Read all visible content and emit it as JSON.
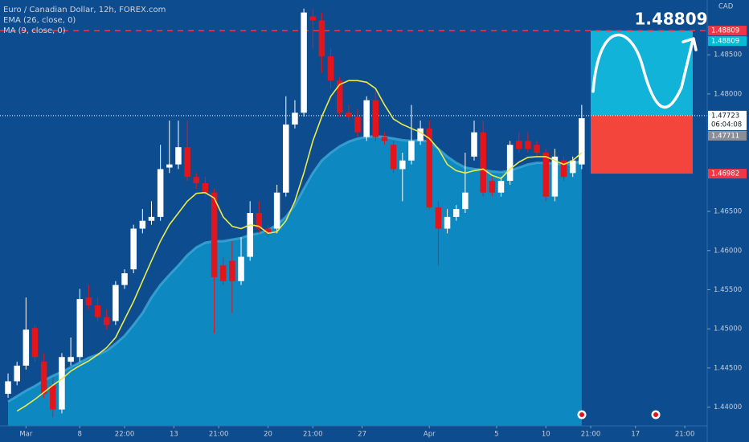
{
  "chart_data": {
    "type": "candlestick",
    "title": "Euro / Canadian Dollar, 12h, FOREX.com",
    "currency": "CAD",
    "up_color": "#ffffff",
    "down_color": "#e3151c",
    "open": [
      1.4417,
      1.4433,
      1.4453,
      1.4501,
      1.4458,
      1.4428,
      1.4397,
      1.4458,
      1.4464,
      1.454,
      1.453,
      1.4515,
      1.451,
      1.4556,
      1.4576,
      1.4628,
      1.4638,
      1.4643,
      1.4706,
      1.471,
      1.4732,
      1.4694,
      1.4686,
      1.4674,
      1.4581,
      1.4587,
      1.4561,
      1.4592,
      1.4648,
      1.4628,
      1.4628,
      1.4674,
      1.4761,
      1.4776,
      1.4899,
      1.4894,
      1.4848,
      1.4817,
      1.4776,
      1.4771,
      1.4745,
      1.4792,
      1.4745,
      1.4735,
      1.4704,
      1.4715,
      1.474,
      1.4756,
      1.4655,
      1.4628,
      1.4643,
      1.4653,
      1.472,
      1.4751,
      1.4689,
      1.4674,
      1.4689,
      1.474,
      1.474,
      1.4735,
      1.4725,
      1.4669,
      1.4715,
      1.4699,
      1.471
    ],
    "high": [
      1.4443,
      1.4458,
      1.454,
      1.4505,
      1.4469,
      1.4438,
      1.4469,
      1.4489,
      1.4551,
      1.4556,
      1.454,
      1.4525,
      1.4561,
      1.4576,
      1.4633,
      1.4653,
      1.4663,
      1.4735,
      1.4766,
      1.4766,
      1.4766,
      1.4699,
      1.4694,
      1.4679,
      1.4592,
      1.4612,
      1.4617,
      1.4663,
      1.4663,
      1.4633,
      1.4684,
      1.4797,
      1.4792,
      1.4909,
      1.4909,
      1.4904,
      1.4858,
      1.4822,
      1.4786,
      1.4781,
      1.4797,
      1.4807,
      1.4751,
      1.474,
      1.4725,
      1.4786,
      1.4766,
      1.4766,
      1.4663,
      1.4653,
      1.4658,
      1.4725,
      1.4766,
      1.4766,
      1.4694,
      1.4694,
      1.474,
      1.4751,
      1.4751,
      1.474,
      1.473,
      1.473,
      1.472,
      1.472,
      1.4786
    ],
    "low": [
      1.4412,
      1.4428,
      1.4448,
      1.4458,
      1.4412,
      1.4387,
      1.4392,
      1.4453,
      1.4458,
      1.4525,
      1.451,
      1.4499,
      1.4505,
      1.4551,
      1.4571,
      1.4622,
      1.4633,
      1.4638,
      1.4699,
      1.4704,
      1.4689,
      1.4679,
      1.4669,
      1.4494,
      1.4556,
      1.452,
      1.4556,
      1.4587,
      1.4622,
      1.4617,
      1.4622,
      1.4669,
      1.4756,
      1.4771,
      1.4858,
      1.4827,
      1.4807,
      1.4771,
      1.4766,
      1.4745,
      1.474,
      1.474,
      1.4735,
      1.4699,
      1.4663,
      1.471,
      1.4735,
      1.4653,
      1.4581,
      1.4622,
      1.4638,
      1.4648,
      1.4715,
      1.4669,
      1.4669,
      1.4669,
      1.4684,
      1.4725,
      1.4725,
      1.472,
      1.4663,
      1.4663,
      1.4689,
      1.4694,
      1.4704
    ],
    "close": [
      1.4433,
      1.4453,
      1.4499,
      1.4464,
      1.4417,
      1.4397,
      1.4464,
      1.4464,
      1.4538,
      1.453,
      1.4515,
      1.4505,
      1.4556,
      1.4571,
      1.4628,
      1.4638,
      1.4643,
      1.4704,
      1.471,
      1.4732,
      1.4694,
      1.4686,
      1.4674,
      1.4566,
      1.4561,
      1.4561,
      1.4592,
      1.4648,
      1.4628,
      1.4622,
      1.4674,
      1.4761,
      1.4776,
      1.4904,
      1.4894,
      1.4848,
      1.4817,
      1.4776,
      1.4771,
      1.4751,
      1.4792,
      1.4745,
      1.474,
      1.4704,
      1.4715,
      1.474,
      1.4756,
      1.4655,
      1.4628,
      1.4643,
      1.4653,
      1.4674,
      1.4751,
      1.4674,
      1.4674,
      1.4689,
      1.4735,
      1.473,
      1.473,
      1.4725,
      1.4669,
      1.472,
      1.4694,
      1.4715,
      1.4769
    ],
    "series": [
      {
        "name": "EMA (26, close, 0)",
        "color": "#0e88c0",
        "values": [
          1.4407,
          1.4414,
          1.4421,
          1.4427,
          1.4434,
          1.444,
          1.4445,
          1.4451,
          1.4457,
          1.4463,
          1.4467,
          1.4472,
          1.4481,
          1.4491,
          1.4505,
          1.452,
          1.454,
          1.4556,
          1.4569,
          1.4581,
          1.4594,
          1.4604,
          1.461,
          1.4612,
          1.4612,
          1.4614,
          1.4616,
          1.462,
          1.4622,
          1.4626,
          1.4633,
          1.4643,
          1.4658,
          1.4679,
          1.4699,
          1.4715,
          1.4725,
          1.4733,
          1.4739,
          1.4743,
          1.4745,
          1.4746,
          1.4745,
          1.4743,
          1.4741,
          1.474,
          1.4741,
          1.4739,
          1.473,
          1.472,
          1.4712,
          1.4706,
          1.4704,
          1.4703,
          1.4701,
          1.47,
          1.4702,
          1.4706,
          1.471,
          1.4712,
          1.4712,
          1.4711,
          1.471,
          1.4711,
          1.4715
        ]
      },
      {
        "name": "MA (9, close, 0)",
        "color": "#ecea4a",
        "values": [
          null,
          1.4395,
          1.4402,
          1.441,
          1.4419,
          1.4428,
          1.4436,
          1.4446,
          1.4453,
          1.4459,
          1.4467,
          1.4476,
          1.4489,
          1.4512,
          1.4535,
          1.4561,
          1.4587,
          1.4612,
          1.4633,
          1.4648,
          1.4663,
          1.4673,
          1.4674,
          1.4667,
          1.4643,
          1.4631,
          1.4628,
          1.4633,
          1.4631,
          1.4622,
          1.4624,
          1.4638,
          1.4663,
          1.4699,
          1.474,
          1.4771,
          1.4797,
          1.4812,
          1.4817,
          1.4817,
          1.4815,
          1.4807,
          1.4786,
          1.4768,
          1.4761,
          1.4756,
          1.4751,
          1.4743,
          1.473,
          1.471,
          1.4702,
          1.4699,
          1.4702,
          1.4704,
          1.4696,
          1.4692,
          1.4704,
          1.4713,
          1.4719,
          1.472,
          1.472,
          1.4715,
          1.471,
          1.4715,
          1.4725
        ]
      }
    ],
    "xlim": [
      -0.9,
      78
    ],
    "xticks": [
      {
        "value": 2,
        "label": "Mar"
      },
      8,
      {
        "value": 13,
        "label": "22:00"
      },
      {
        "value": 18.5,
        "label": "13"
      },
      {
        "value": 23.5,
        "label": "21:00"
      },
      {
        "value": 29,
        "label": "20"
      },
      {
        "value": 34,
        "label": "21:00"
      },
      {
        "value": 39.5,
        "label": "27"
      },
      {
        "value": 47,
        "label": "Apr"
      },
      {
        "value": 54.5,
        "label": "5"
      },
      {
        "value": 60,
        "label": "10"
      },
      {
        "value": 65,
        "label": "21:00"
      },
      {
        "value": 70,
        "label": "17"
      },
      {
        "value": 75.5,
        "label": "21:00"
      }
    ],
    "ylim": [
      1.4376,
      1.492
    ],
    "yticks": [
      {
        "value": 1.44,
        "label": "1.44000"
      },
      {
        "value": 1.445,
        "label": "1.44500"
      },
      {
        "value": 1.45,
        "label": "1.45000"
      },
      {
        "value": 1.455,
        "label": "1.45500"
      },
      {
        "value": 1.46,
        "label": "1.46000"
      },
      {
        "value": 1.465,
        "label": "1.46500"
      },
      {
        "value": 1.48,
        "label": "1.48000"
      },
      {
        "value": 1.485,
        "label": "1.48500"
      }
    ],
    "grid": false,
    "position": {
      "entry": 1.47723,
      "target": 1.48809,
      "stop": 1.46982,
      "target_color": "#11b3d9",
      "stop_color": "#f4453d"
    },
    "axis_labels": [
      {
        "value": 1.48809,
        "color": "#f23645"
      },
      {
        "value": 1.48809,
        "color": "#00bcd4"
      },
      {
        "value": 1.47723,
        "color": "#ffffff"
      },
      {
        "value": 1.47711,
        "color": "#8a8e99"
      },
      {
        "value": 1.46982,
        "color": "#f23645"
      }
    ],
    "countdown": "06:04:08"
  }
}
